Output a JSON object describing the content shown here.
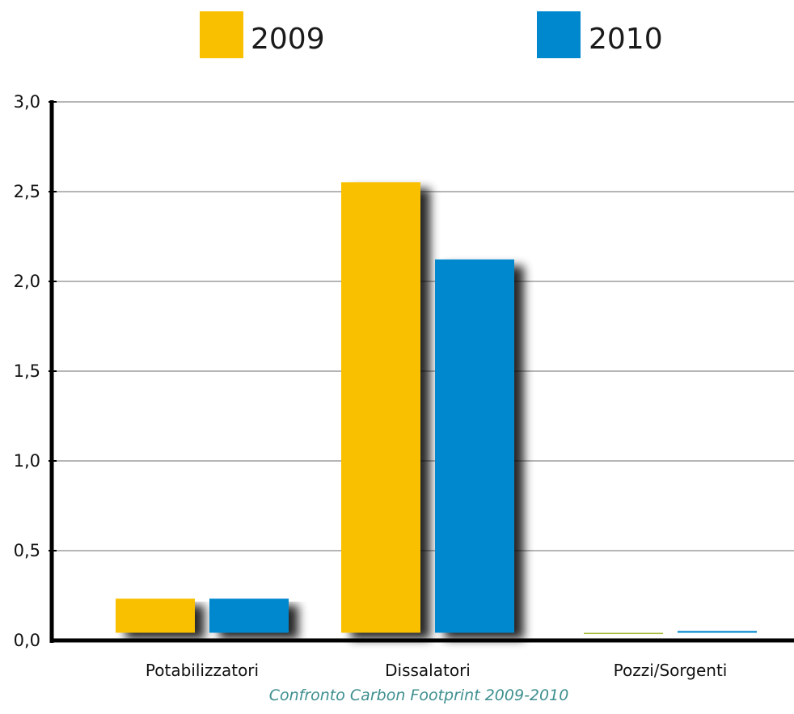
{
  "chart_data": {
    "type": "bar",
    "title": "",
    "caption": "Confronto Carbon Footprint 2009-2010",
    "xlabel": "",
    "ylabel": "",
    "categories": [
      "Potabilizzatori",
      "Dissalatori",
      "Pozzi/Sorgenti"
    ],
    "series": [
      {
        "name": "2009",
        "color": "#F9C000",
        "values": [
          0.21,
          2.53,
          0.02
        ],
        "value_colors": [
          "#F9C000",
          "#F9C000",
          "#A6BD3C"
        ]
      },
      {
        "name": "2010",
        "color": "#0088CF",
        "values": [
          0.21,
          2.1,
          0.03
        ]
      }
    ],
    "ylim": [
      0,
      3
    ],
    "yticks": [
      0,
      0.5,
      1.0,
      1.5,
      2.0,
      2.5,
      3.0
    ],
    "ytick_labels": [
      "0,0",
      "0,5",
      "1,0",
      "1,5",
      "2,0",
      "2,5",
      "3,0"
    ],
    "grid": true,
    "legend_position": "top"
  }
}
